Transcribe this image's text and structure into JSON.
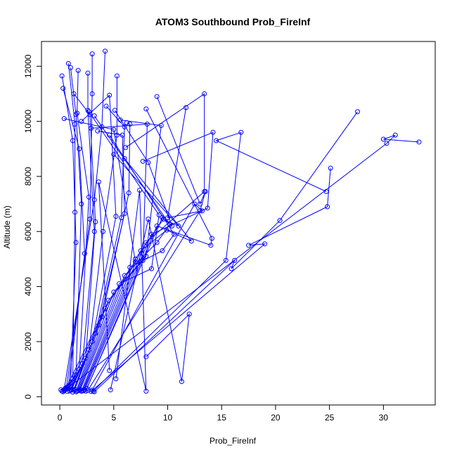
{
  "chart_data": {
    "type": "line",
    "title": "ATOM3 Southbound Prob_FireInf",
    "xlabel": "Prob_FireInf",
    "ylabel": "Altitude (m)",
    "xlim": [
      -1.7,
      34.8
    ],
    "ylim": [
      -300,
      12900
    ],
    "x_ticks": [
      0,
      5,
      10,
      15,
      20,
      25,
      30
    ],
    "y_ticks": [
      0,
      2000,
      4000,
      6000,
      8000,
      10000,
      12000
    ],
    "grid": false,
    "legend": "none",
    "series_color": "#0000ff",
    "marker": "open-circle",
    "series": [
      {
        "x": [
          0.2,
          0.4,
          3.2,
          3.9,
          4.2
        ],
        "y": [
          200,
          250,
          7150,
          9800,
          12550
        ]
      },
      {
        "x": [
          0.3,
          0.6,
          2.8,
          3.0,
          3.0
        ],
        "y": [
          180,
          300,
          6450,
          11000,
          12450
        ]
      },
      {
        "x": [
          0.1,
          0.8,
          2.3,
          1.8,
          0.3
        ],
        "y": [
          250,
          400,
          5200,
          9000,
          11200
        ]
      },
      {
        "x": [
          0.4,
          1.0,
          1.5,
          1.2,
          0.2
        ],
        "y": [
          220,
          500,
          5600,
          9300,
          11650
        ]
      },
      {
        "x": [
          0.5,
          1.2,
          1.4,
          1.4,
          0.8
        ],
        "y": [
          300,
          650,
          6700,
          9900,
          12100
        ]
      },
      {
        "x": [
          0.6,
          1.5,
          2.0,
          1.5,
          1.0
        ],
        "y": [
          280,
          800,
          7000,
          10250,
          11950
        ]
      },
      {
        "x": [
          0.7,
          1.8,
          2.7,
          1.6,
          1.7
        ],
        "y": [
          190,
          1000,
          7250,
          10300,
          11850
        ]
      },
      {
        "x": [
          0.9,
          2.1,
          3.2,
          2.6,
          2.6
        ],
        "y": [
          210,
          1200,
          6000,
          10400,
          11750
        ]
      },
      {
        "x": [
          1.0,
          2.4,
          3.3,
          2.8,
          1.3
        ],
        "y": [
          240,
          1400,
          6350,
          10250,
          11000
        ]
      },
      {
        "x": [
          1.1,
          2.7,
          4.0,
          5.3,
          5.3
        ],
        "y": [
          260,
          1700,
          6000,
          9500,
          11650
        ]
      },
      {
        "x": [
          1.2,
          3.0,
          5.2,
          4.6,
          2.0
        ],
        "y": [
          170,
          2000,
          6550,
          10950,
          10000
        ]
      },
      {
        "x": [
          1.3,
          3.3,
          5.7,
          6.0,
          4.3
        ],
        "y": [
          230,
          2300,
          6500,
          9800,
          10550
        ]
      },
      {
        "x": [
          1.4,
          3.6,
          6.0,
          5.8,
          3.5
        ],
        "y": [
          270,
          2600,
          6650,
          9500,
          9650
        ]
      },
      {
        "x": [
          0.8,
          3.9,
          6.4,
          6.5,
          6.2
        ],
        "y": [
          310,
          2900,
          7400,
          9900,
          9950
        ]
      },
      {
        "x": [
          0.6,
          4.2,
          7.0,
          5.0,
          0.4
        ],
        "y": [
          330,
          3200,
          4900,
          9700,
          10100
        ]
      },
      {
        "x": [
          1.5,
          4.5,
          7.7,
          8.1,
          2.9
        ],
        "y": [
          180,
          3500,
          4950,
          9900,
          9750
        ]
      },
      {
        "x": [
          1.6,
          5.0,
          8.0,
          9.4,
          5.6
        ],
        "y": [
          200,
          3800,
          5100,
          9850,
          10050
        ]
      },
      {
        "x": [
          1.7,
          5.5,
          8.5,
          9.2,
          2.7
        ],
        "y": [
          220,
          4100,
          4650,
          6600,
          10350
        ]
      },
      {
        "x": [
          1.8,
          6.0,
          9.0,
          10.2,
          3.2
        ],
        "y": [
          240,
          4400,
          5600,
          6250,
          10200
        ]
      },
      {
        "x": [
          1.9,
          6.5,
          9.5,
          10.6,
          4.6
        ],
        "y": [
          260,
          4700,
          5300,
          5900,
          9500
        ]
      },
      {
        "x": [
          2.0,
          7.0,
          9.6,
          11.0,
          5.0
        ],
        "y": [
          200,
          5000,
          6450,
          6200,
          8800
        ]
      },
      {
        "x": [
          2.1,
          7.5,
          9.9,
          12.2,
          6.0
        ],
        "y": [
          210,
          5300,
          6050,
          5650,
          8650
        ]
      },
      {
        "x": [
          2.2,
          8.0,
          13.4,
          13.4,
          6.1
        ],
        "y": [
          230,
          5600,
          7450,
          11000,
          9050
        ]
      },
      {
        "x": [
          2.3,
          8.5,
          13.7,
          14.2,
          7.7
        ],
        "y": [
          250,
          5900,
          6850,
          9600,
          8550
        ]
      },
      {
        "x": [
          2.4,
          9.0,
          14.0,
          14.1,
          8.0
        ],
        "y": [
          200,
          6200,
          5500,
          5750,
          10450
        ]
      },
      {
        "x": [
          2.5,
          9.5,
          10.4,
          8.2,
          5.1
        ],
        "y": [
          300,
          6500,
          6200,
          8500,
          10400
        ]
      },
      {
        "x": [
          2.6,
          13.0,
          13.5,
          13.0,
          9.0
        ],
        "y": [
          230,
          6750,
          7450,
          7000,
          10900
        ]
      },
      {
        "x": [
          3.0,
          12.5,
          13.2,
          10.0,
          11.7
        ],
        "y": [
          240,
          7000,
          6750,
          6500,
          10500
        ]
      },
      {
        "x": [
          3.1,
          15.4,
          16.8,
          14.5,
          24.7
        ],
        "y": [
          200,
          4950,
          9600,
          9300,
          7450
        ]
      },
      {
        "x": [
          3.2,
          16.2,
          15.9,
          20.4,
          27.6
        ],
        "y": [
          180,
          4950,
          4650,
          6400,
          10350
        ]
      },
      {
        "x": [
          2.9,
          19.0,
          17.5,
          24.8,
          25.1
        ],
        "y": [
          190,
          5550,
          5500,
          6900,
          8300
        ]
      },
      {
        "x": [
          0.5,
          30.3,
          31.1,
          30.0,
          33.3
        ],
        "y": [
          250,
          9200,
          9500,
          9350,
          9250
        ]
      },
      {
        "x": [
          4.7,
          8.2,
          11.3,
          12.0,
          8.0
        ],
        "y": [
          250,
          6450,
          550,
          3000,
          1450
        ]
      },
      {
        "x": [
          5.2,
          7.4,
          8.0,
          3.6,
          4.6
        ],
        "y": [
          650,
          7500,
          200,
          7800,
          950
        ]
      }
    ]
  }
}
